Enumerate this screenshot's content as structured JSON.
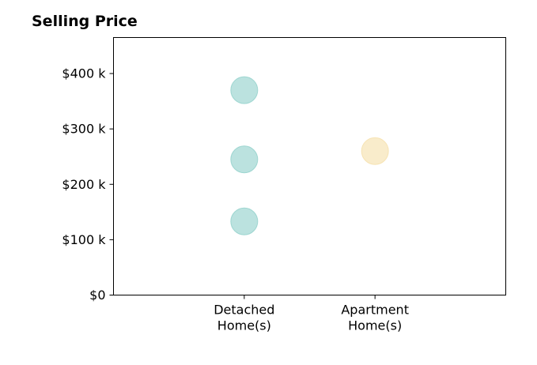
{
  "chart_data": {
    "type": "scatter",
    "title": "Selling Price",
    "xlabel": "",
    "ylabel": "",
    "categories": [
      [
        "Detached",
        "Home(s)"
      ],
      [
        "Apartment",
        "Home(s)"
      ]
    ],
    "yticks": [
      0,
      100000,
      200000,
      300000,
      400000
    ],
    "ytick_labels": [
      "$0",
      "$100 k",
      "$200 k",
      "$300 k",
      "$400 k"
    ],
    "ylim": [
      0,
      465000
    ],
    "grid": false,
    "points": [
      {
        "category": 0,
        "y": 370000,
        "color": "#8ecfc9"
      },
      {
        "category": 0,
        "y": 245000,
        "color": "#8ecfc9"
      },
      {
        "category": 0,
        "y": 133000,
        "color": "#8ecfc9"
      },
      {
        "category": 1,
        "y": 260000,
        "color": "#f5dfa8"
      }
    ]
  }
}
